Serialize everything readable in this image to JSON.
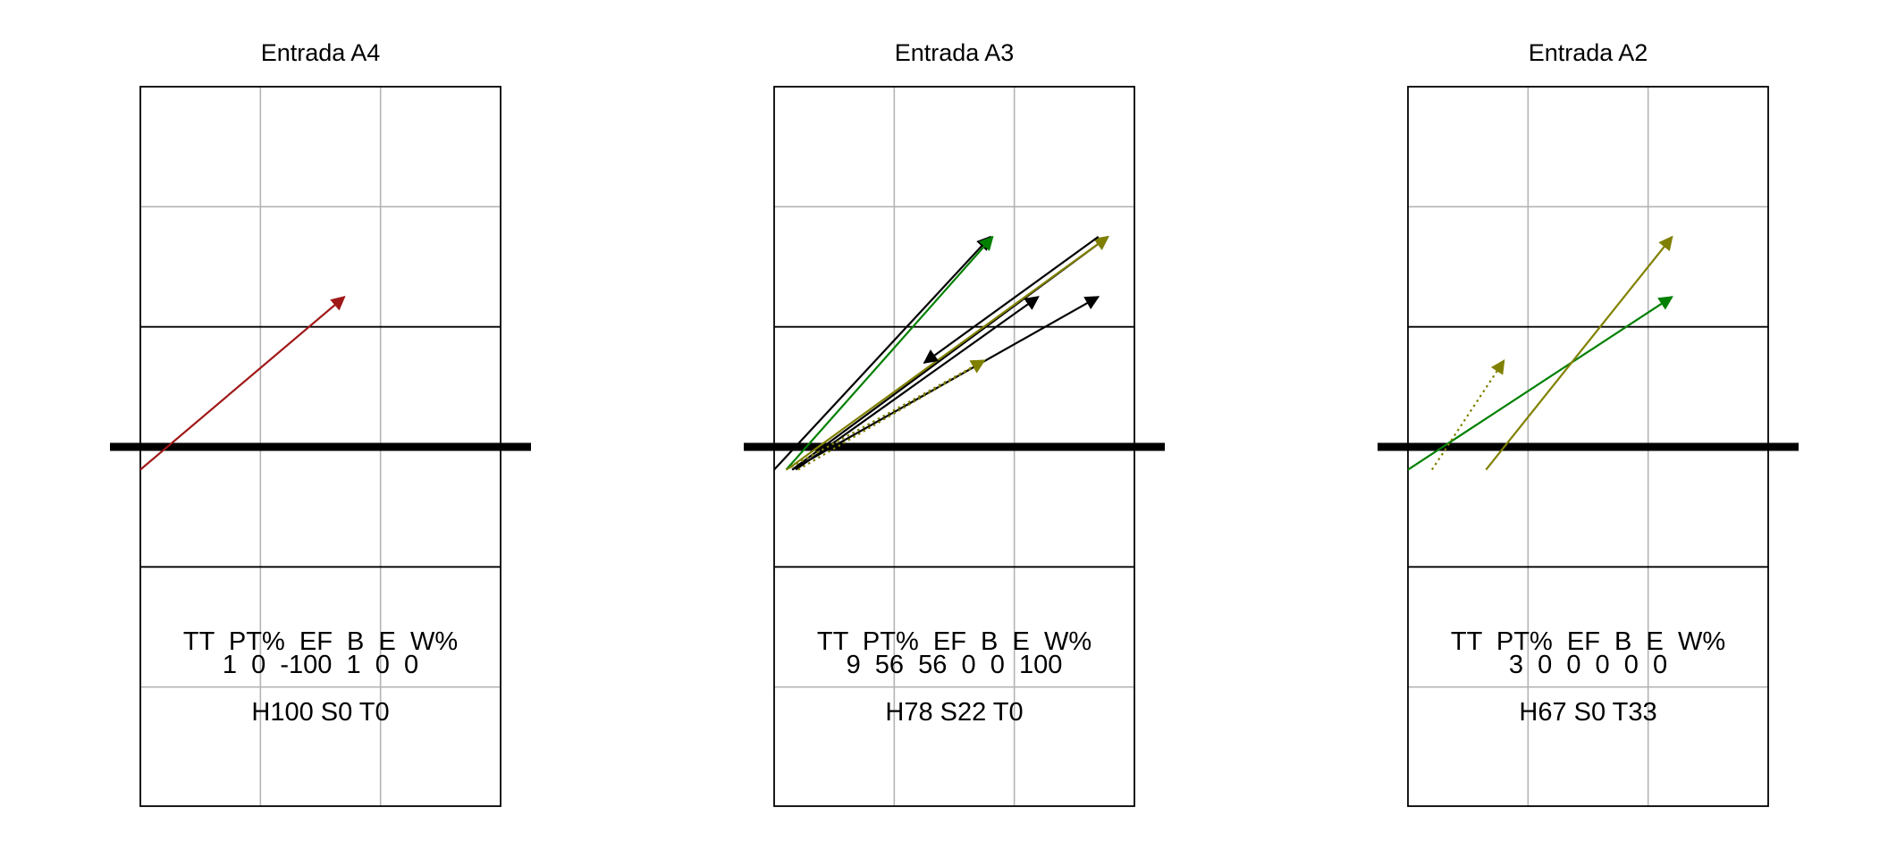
{
  "chart_data": [
    {
      "type": "court-attack-chart",
      "title": "Entrada A4",
      "stats_header": "TT  PT%  EF  B  E  W%",
      "stats_values": "1  0  -100  1  0  0",
      "zone_summary": "H100 S0 T0",
      "colors": {
        "error": "#a01818",
        "kill": "#008000",
        "in_play": "#808000",
        "other": "#000000"
      },
      "attacks": [
        {
          "from": [
            0.0,
            -0.19
          ],
          "to": [
            1.7,
            1.25
          ],
          "color": "#a01818",
          "style": "solid"
        }
      ]
    },
    {
      "type": "court-attack-chart",
      "title": "Entrada A3",
      "stats_header": "TT  PT%  EF  B  E  W%",
      "stats_values": "9  56  56  0  0  100",
      "zone_summary": "H78 S22 T0",
      "colors": {
        "error": "#a01818",
        "kill": "#008000",
        "in_play": "#808000",
        "other": "#000000"
      },
      "attacks": [
        {
          "from": [
            0.0,
            -0.19
          ],
          "to": [
            1.8,
            1.75
          ],
          "color": "#000000",
          "style": "solid"
        },
        {
          "from": [
            0.1,
            -0.19
          ],
          "to": [
            1.82,
            1.75
          ],
          "color": "#008000",
          "style": "solid"
        },
        {
          "from": [
            0.15,
            -0.19
          ],
          "to": [
            2.78,
            1.75
          ],
          "color": "#000000",
          "style": "solid"
        },
        {
          "from": [
            0.12,
            -0.18
          ],
          "to": [
            2.78,
            1.75
          ],
          "color": "#808000",
          "style": "solid"
        },
        {
          "from": [
            0.18,
            -0.19
          ],
          "to": [
            2.2,
            1.25
          ],
          "color": "#000000",
          "style": "solid"
        },
        {
          "from": [
            0.15,
            -0.19
          ],
          "to": [
            2.7,
            1.25
          ],
          "color": "#000000",
          "style": "solid"
        },
        {
          "from": [
            0.1,
            -0.19
          ],
          "to": [
            1.75,
            0.72
          ],
          "color": "#808000",
          "style": "dotted"
        },
        {
          "from": [
            0.2,
            -0.19
          ],
          "to": [
            1.75,
            0.72
          ],
          "color": "#808000",
          "style": "dotted"
        },
        {
          "from": [
            2.7,
            1.75
          ],
          "to": [
            1.25,
            0.7
          ],
          "color": "#000000",
          "style": "solid"
        }
      ]
    },
    {
      "type": "court-attack-chart",
      "title": "Entrada A2",
      "stats_header": "TT  PT%  EF  B  E  W%",
      "stats_values": "3  0  0  0  0  0",
      "zone_summary": "H67 S0 T33",
      "colors": {
        "error": "#a01818",
        "kill": "#008000",
        "in_play": "#808000",
        "other": "#000000"
      },
      "attacks": [
        {
          "from": [
            0.0,
            -0.19
          ],
          "to": [
            2.2,
            1.25
          ],
          "color": "#008000",
          "style": "solid"
        },
        {
          "from": [
            0.65,
            -0.19
          ],
          "to": [
            2.2,
            1.75
          ],
          "color": "#808000",
          "style": "solid"
        },
        {
          "from": [
            0.2,
            -0.19
          ],
          "to": [
            0.8,
            0.72
          ],
          "color": "#808000",
          "style": "dotted"
        }
      ]
    }
  ]
}
